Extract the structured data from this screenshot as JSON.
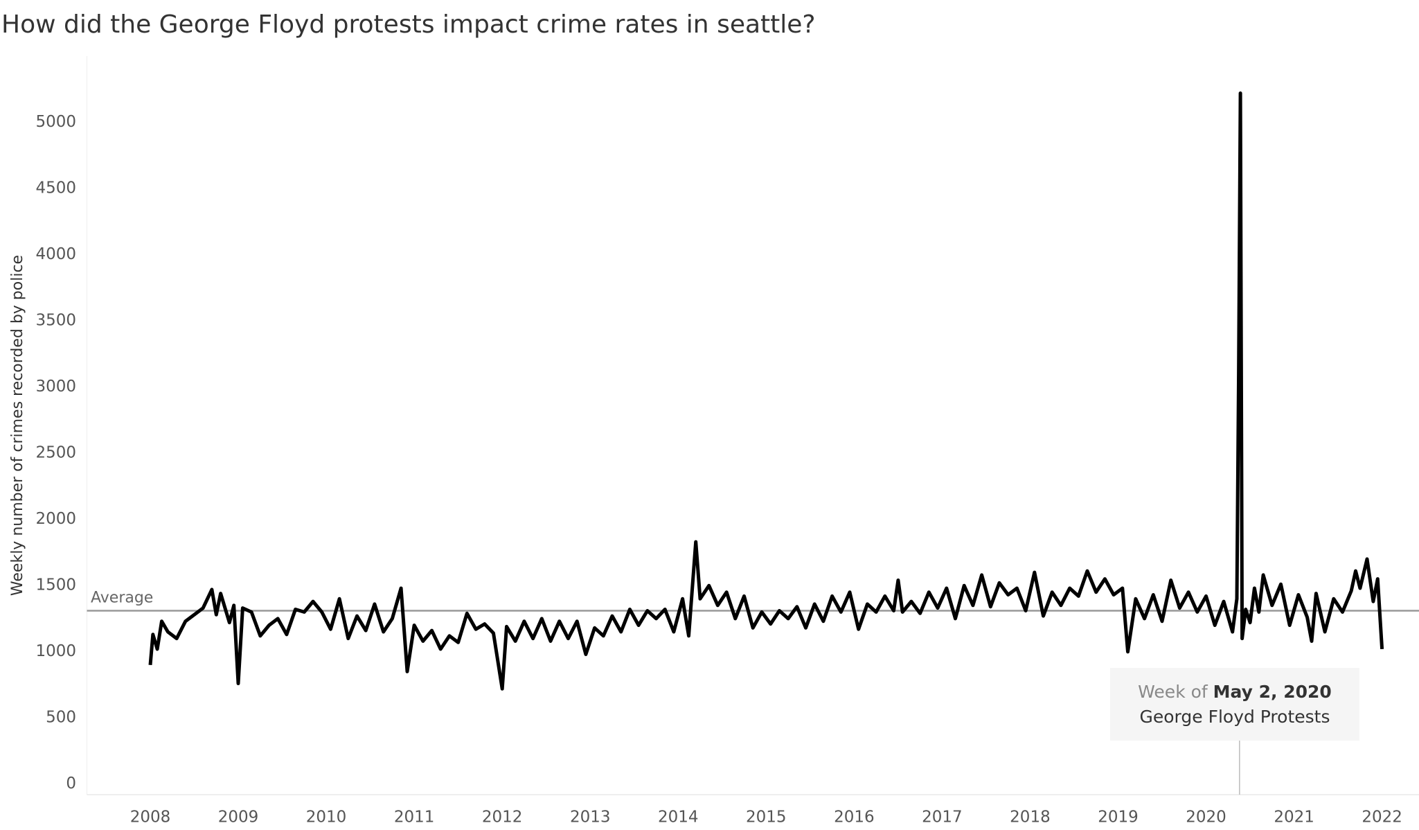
{
  "chart_data": {
    "type": "line",
    "title": "How did the George Floyd protests impact crime rates in seattle?",
    "y_label": "Weekly number of crimes recorded by police",
    "color": "#000000",
    "xlim": [
      2007.28,
      2022.42
    ],
    "xticks": [
      2008,
      2009,
      2010,
      2011,
      2012,
      2013,
      2014,
      2015,
      2016,
      2017,
      2018,
      2019,
      2020,
      2021,
      2022
    ],
    "ylim": [
      -80,
      5500
    ],
    "yticks": [
      0,
      500,
      1000,
      1500,
      2000,
      2500,
      3000,
      3500,
      4000,
      4500,
      5000
    ],
    "grid": false,
    "reference_line": {
      "label": "Average",
      "value": 1310
    },
    "annotation": {
      "x": 2020.38,
      "prefix": "Week of",
      "date": "May 2, 2020",
      "text": "George Floyd Protests"
    },
    "x": [
      2008.0,
      2008.03,
      2008.08,
      2008.13,
      2008.2,
      2008.3,
      2008.4,
      2008.5,
      2008.6,
      2008.7,
      2008.75,
      2008.8,
      2008.9,
      2008.95,
      2009.0,
      2009.05,
      2009.15,
      2009.25,
      2009.35,
      2009.45,
      2009.55,
      2009.65,
      2009.75,
      2009.85,
      2009.95,
      2010.05,
      2010.15,
      2010.25,
      2010.35,
      2010.45,
      2010.55,
      2010.65,
      2010.75,
      2010.85,
      2010.92,
      2011.0,
      2011.1,
      2011.2,
      2011.3,
      2011.4,
      2011.5,
      2011.6,
      2011.7,
      2011.8,
      2011.9,
      2012.0,
      2012.05,
      2012.15,
      2012.25,
      2012.35,
      2012.45,
      2012.55,
      2012.65,
      2012.75,
      2012.85,
      2012.95,
      2013.05,
      2013.15,
      2013.25,
      2013.35,
      2013.45,
      2013.55,
      2013.65,
      2013.75,
      2013.85,
      2013.95,
      2014.05,
      2014.12,
      2014.2,
      2014.25,
      2014.35,
      2014.45,
      2014.55,
      2014.65,
      2014.75,
      2014.85,
      2014.95,
      2015.05,
      2015.15,
      2015.25,
      2015.35,
      2015.45,
      2015.55,
      2015.65,
      2015.75,
      2015.85,
      2015.95,
      2016.05,
      2016.15,
      2016.25,
      2016.35,
      2016.45,
      2016.5,
      2016.55,
      2016.65,
      2016.75,
      2016.85,
      2016.95,
      2017.05,
      2017.15,
      2017.25,
      2017.35,
      2017.45,
      2017.55,
      2017.65,
      2017.75,
      2017.85,
      2017.95,
      2018.05,
      2018.15,
      2018.25,
      2018.35,
      2018.45,
      2018.55,
      2018.65,
      2018.75,
      2018.85,
      2018.95,
      2019.05,
      2019.11,
      2019.2,
      2019.3,
      2019.4,
      2019.5,
      2019.6,
      2019.7,
      2019.8,
      2019.9,
      2020.0,
      2020.1,
      2020.2,
      2020.3,
      2020.35,
      2020.37,
      2020.39,
      2020.41,
      2020.45,
      2020.5,
      2020.55,
      2020.6,
      2020.65,
      2020.75,
      2020.85,
      2020.95,
      2021.05,
      2021.15,
      2021.2,
      2021.25,
      2021.35,
      2021.45,
      2021.55,
      2021.65,
      2021.7,
      2021.75,
      2021.83,
      2021.9,
      2021.95,
      2022.0
    ],
    "values": [
      900,
      1130,
      1020,
      1230,
      1150,
      1100,
      1230,
      1280,
      1330,
      1470,
      1280,
      1440,
      1220,
      1350,
      760,
      1330,
      1300,
      1120,
      1200,
      1250,
      1130,
      1320,
      1300,
      1380,
      1300,
      1170,
      1400,
      1100,
      1270,
      1160,
      1360,
      1150,
      1250,
      1480,
      850,
      1200,
      1080,
      1160,
      1020,
      1120,
      1070,
      1290,
      1170,
      1210,
      1140,
      720,
      1190,
      1080,
      1230,
      1100,
      1250,
      1080,
      1230,
      1100,
      1230,
      980,
      1180,
      1120,
      1270,
      1150,
      1320,
      1200,
      1310,
      1250,
      1320,
      1150,
      1400,
      1120,
      1830,
      1400,
      1500,
      1350,
      1450,
      1250,
      1420,
      1180,
      1300,
      1210,
      1310,
      1250,
      1340,
      1180,
      1360,
      1230,
      1420,
      1300,
      1450,
      1170,
      1360,
      1300,
      1420,
      1310,
      1540,
      1300,
      1380,
      1290,
      1450,
      1330,
      1480,
      1250,
      1500,
      1350,
      1580,
      1340,
      1520,
      1430,
      1480,
      1310,
      1600,
      1270,
      1450,
      1350,
      1480,
      1420,
      1610,
      1450,
      1550,
      1430,
      1480,
      1000,
      1400,
      1250,
      1430,
      1230,
      1540,
      1330,
      1450,
      1300,
      1420,
      1200,
      1380,
      1150,
      1400,
      3100,
      5220,
      1100,
      1320,
      1220,
      1480,
      1300,
      1580,
      1350,
      1510,
      1200,
      1430,
      1260,
      1080,
      1440,
      1150,
      1400,
      1300,
      1460,
      1610,
      1480,
      1700,
      1380,
      1550,
      1020
    ]
  }
}
